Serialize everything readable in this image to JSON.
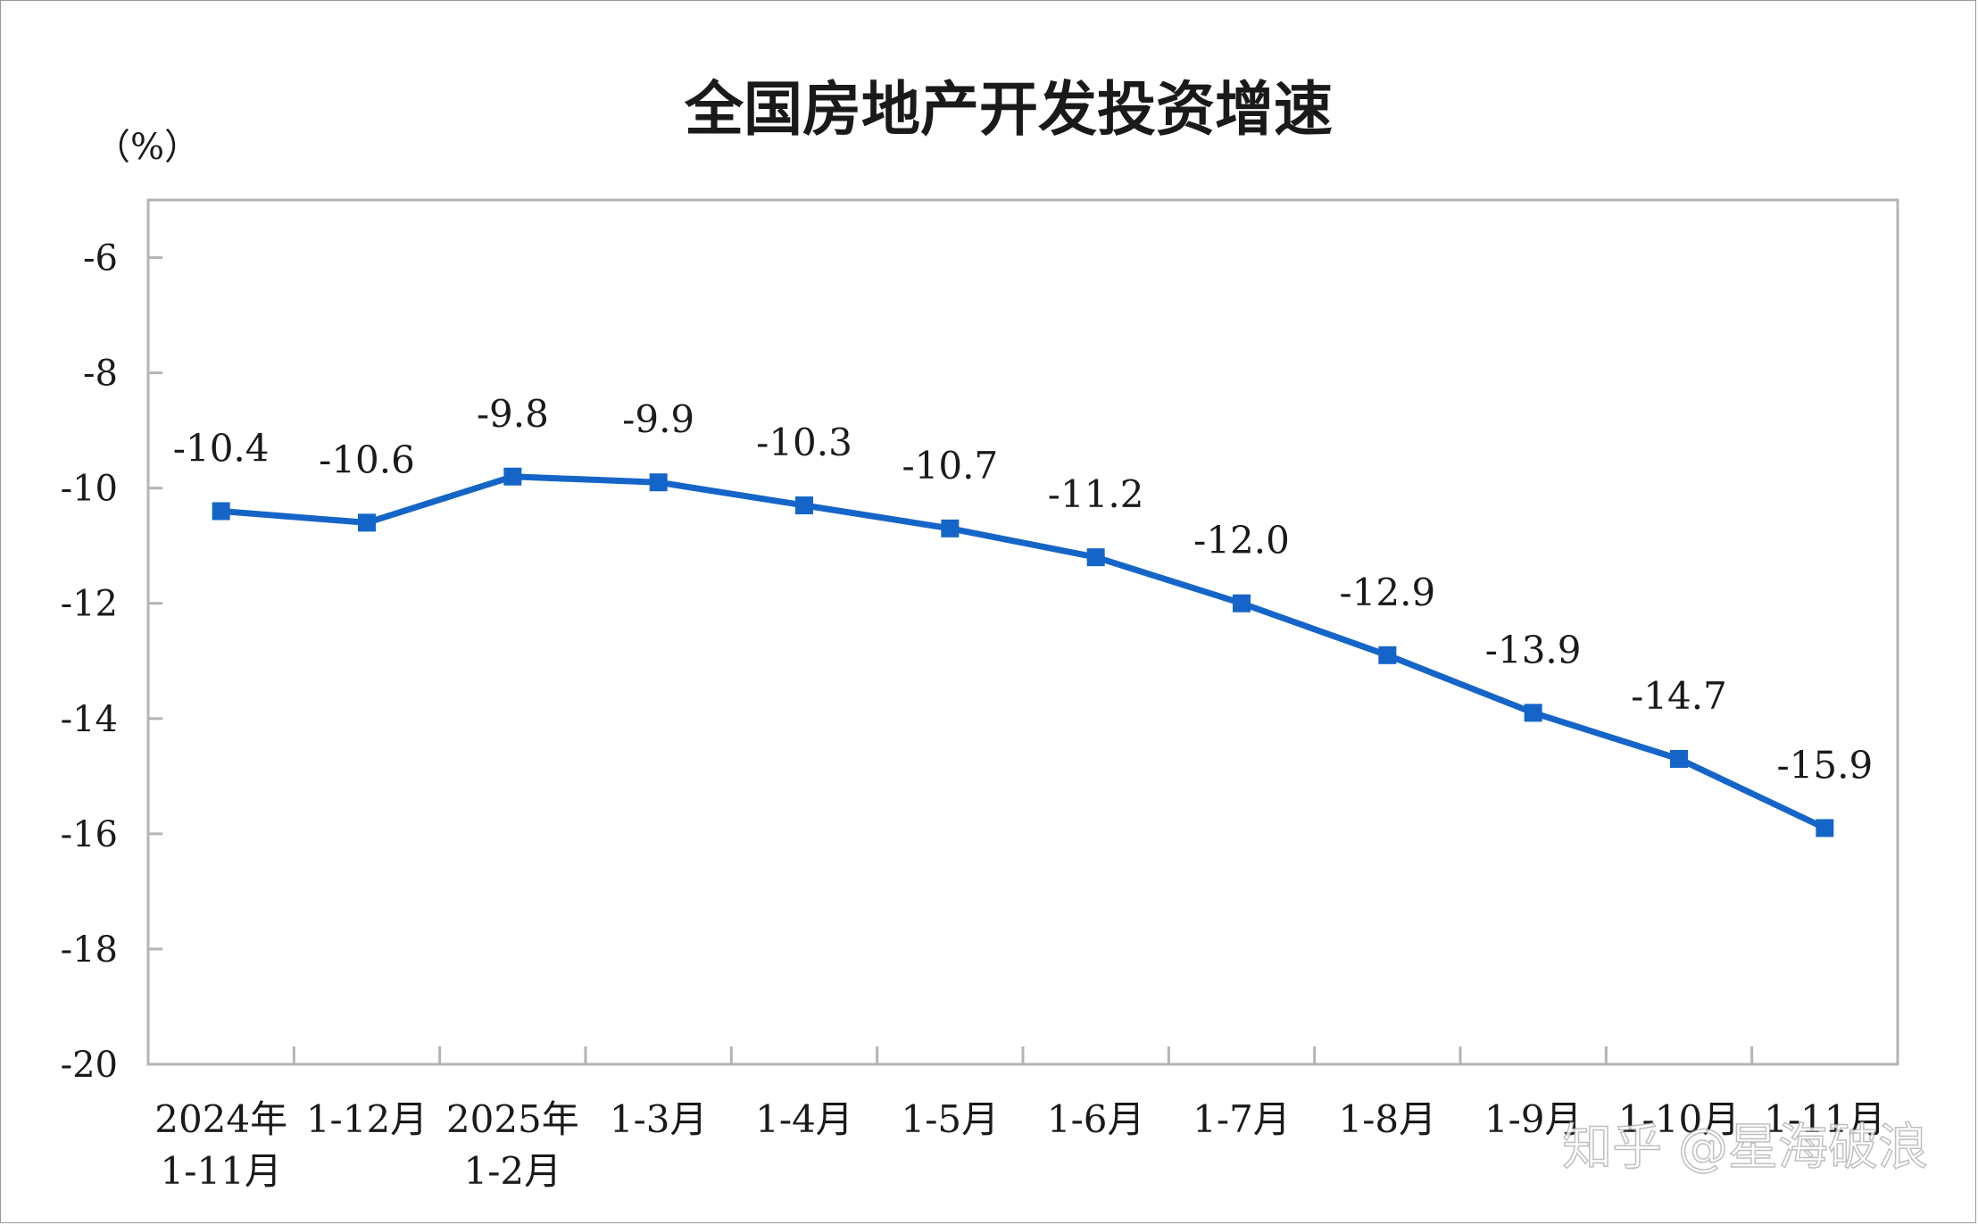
{
  "chart_data": {
    "type": "line",
    "title": "全国房地产开发投资增速",
    "unit_label": "（%）",
    "categories": [
      [
        "2024年",
        "1-11月"
      ],
      [
        "1-12月"
      ],
      [
        "2025年",
        "1-2月"
      ],
      [
        "1-3月"
      ],
      [
        "1-4月"
      ],
      [
        "1-5月"
      ],
      [
        "1-6月"
      ],
      [
        "1-7月"
      ],
      [
        "1-8月"
      ],
      [
        "1-9月"
      ],
      [
        "1-10月"
      ],
      [
        "1-11月"
      ]
    ],
    "values": [
      -10.4,
      -10.6,
      -9.8,
      -9.9,
      -10.3,
      -10.7,
      -11.2,
      -12.0,
      -12.9,
      -13.9,
      -14.7,
      -15.9
    ],
    "data_labels": [
      "-10.4",
      "-10.6",
      "-9.8",
      "-9.9",
      "-10.3",
      "-10.7",
      "-11.2",
      "-12.0",
      "-12.9",
      "-13.9",
      "-14.7",
      "-15.9"
    ],
    "ylim": [
      -20,
      -5
    ],
    "yticks": [
      -6,
      -8,
      -10,
      -12,
      -14,
      -16,
      -18,
      -20
    ],
    "ytick_labels": [
      "-6",
      "-8",
      "-10",
      "-12",
      "-14",
      "-16",
      "-18",
      "-20"
    ],
    "grid": false,
    "legend": "none",
    "line_color": "#1565c9"
  },
  "watermark": "知乎 @星海破浪"
}
